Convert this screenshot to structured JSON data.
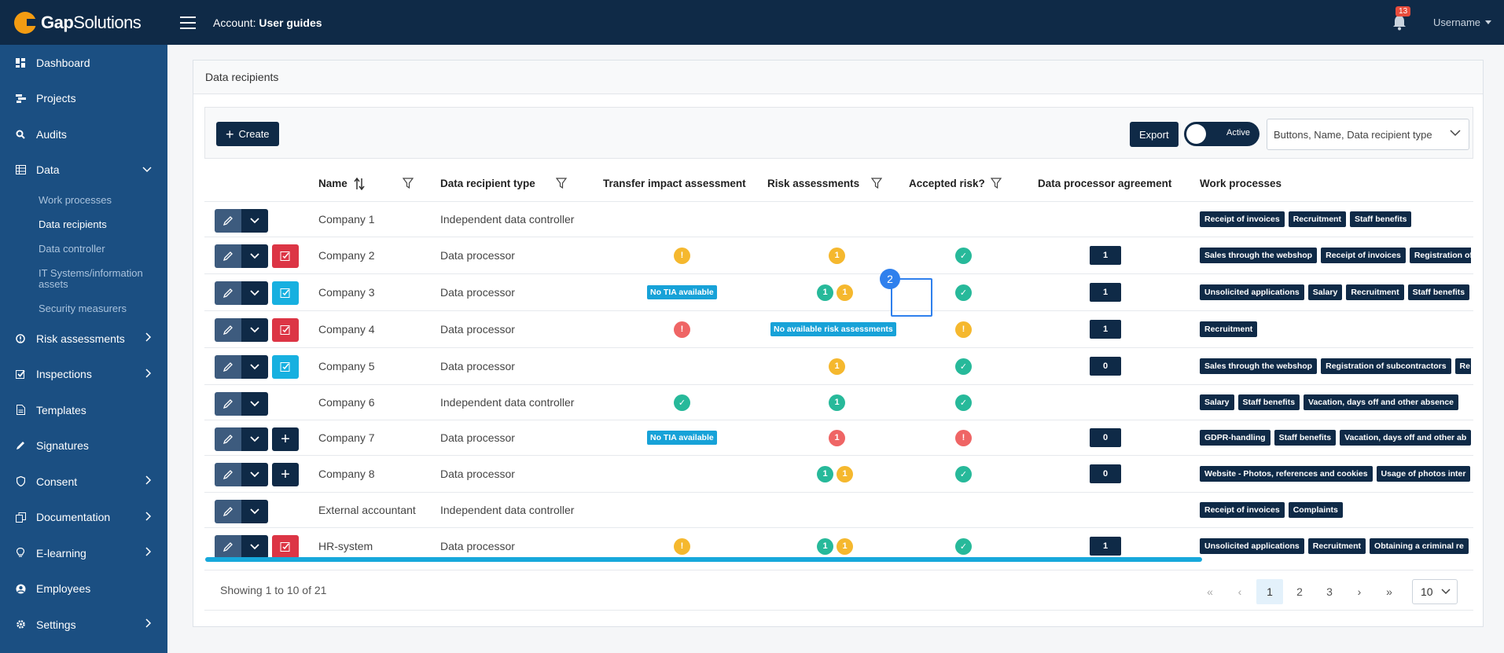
{
  "app": {
    "logo_bold": "Gap",
    "logo_rest": "Solutions"
  },
  "header": {
    "account_label": "Account:",
    "account_name": "User guides",
    "notifications": "13",
    "username": "Username"
  },
  "sidebar": {
    "dashboard": "Dashboard",
    "projects": "Projects",
    "audits": "Audits",
    "data": "Data",
    "data_sub": [
      "Work processes",
      "Data recipients",
      "Data controller",
      "IT Systems/information assets",
      "Security measurers"
    ],
    "risk": "Risk assessments",
    "inspections": "Inspections",
    "templates": "Templates",
    "signatures": "Signatures",
    "consent": "Consent",
    "documentation": "Documentation",
    "elearning": "E-learning",
    "employees": "Employees",
    "settings": "Settings"
  },
  "panel": {
    "title": "Data recipients"
  },
  "toolbar": {
    "create": "Create",
    "export": "Export",
    "toggle": "Active",
    "columns": "Buttons, Name, Data recipient type"
  },
  "columns": {
    "name": "Name",
    "type": "Data recipient type",
    "tia": "Transfer impact assessment",
    "risk": "Risk assessments",
    "accepted": "Accepted risk?",
    "dpa": "Data processor agreement",
    "work": "Work processes"
  },
  "labels": {
    "no_tia": "No TIA available",
    "no_risk": "No available risk assessments"
  },
  "rows": [
    {
      "name": "Company 1",
      "type": "Independent data controller",
      "dpa": "",
      "work": [
        "Receipt of invoices",
        "Recruitment",
        "Staff benefits"
      ]
    },
    {
      "name": "Company 2",
      "type": "Data processor",
      "dpa": "1",
      "work": [
        "Sales through the webshop",
        "Receipt of invoices",
        "Registration of"
      ]
    },
    {
      "name": "Company 3",
      "type": "Data processor",
      "dpa": "1",
      "work": [
        "Unsolicited applications",
        "Salary",
        "Recruitment",
        "Staff benefits"
      ]
    },
    {
      "name": "Company 4",
      "type": "Data processor",
      "dpa": "1",
      "work": [
        "Recruitment"
      ]
    },
    {
      "name": "Company 5",
      "type": "Data processor",
      "dpa": "0",
      "work": [
        "Sales through the webshop",
        "Registration of subcontractors",
        "Re"
      ]
    },
    {
      "name": "Company 6",
      "type": "Independent data controller",
      "dpa": "",
      "work": [
        "Salary",
        "Staff benefits",
        "Vacation, days off and other absence"
      ]
    },
    {
      "name": "Company 7",
      "type": "Data processor",
      "dpa": "0",
      "work": [
        "GDPR-handling",
        "Staff benefits",
        "Vacation, days off and other ab"
      ]
    },
    {
      "name": "Company 8",
      "type": "Data processor",
      "dpa": "0",
      "work": [
        "Website - Photos, references and cookies",
        "Usage of photos inter"
      ]
    },
    {
      "name": "External accountant",
      "type": "Independent data controller",
      "dpa": "",
      "work": [
        "Receipt of invoices",
        "Complaints"
      ]
    },
    {
      "name": "HR-system",
      "type": "Data processor",
      "dpa": "1",
      "work": [
        "Unsolicited applications",
        "Recruitment",
        "Obtaining a criminal re"
      ]
    }
  ],
  "highlight": {
    "badge": "2"
  },
  "footer": {
    "showing": "Showing 1 to 10 of 21",
    "pages": [
      "1",
      "2",
      "3"
    ],
    "per_page": "10"
  }
}
